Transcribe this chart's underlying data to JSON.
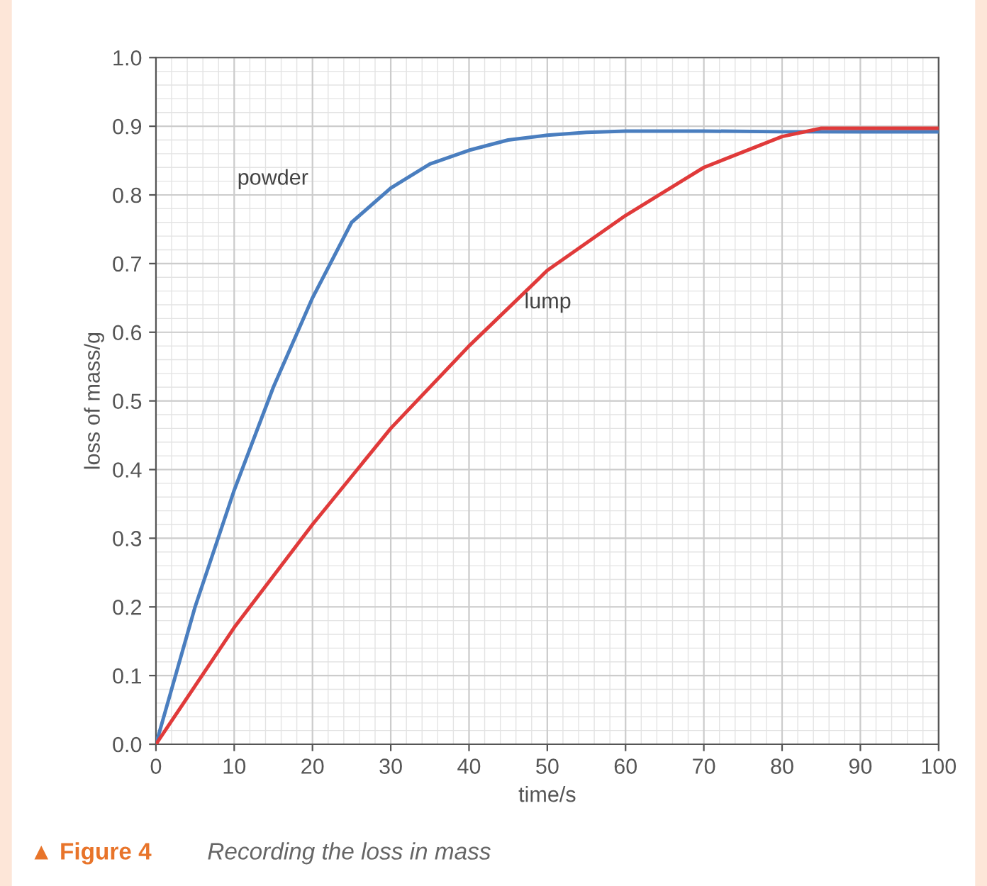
{
  "chart_data": {
    "type": "line",
    "title": "▲ Figure 4",
    "subtitle": "Recording the loss in mass",
    "xlabel": "time/s",
    "ylabel": "loss of mass/g",
    "xlim": [
      0,
      100
    ],
    "ylim": [
      0,
      1.0
    ],
    "xticks": [
      0,
      10,
      20,
      30,
      40,
      50,
      60,
      70,
      80,
      90,
      100
    ],
    "yticks": [
      {
        "value": 0,
        "label": "0.0"
      },
      0.1,
      0.2,
      0.3,
      0.4,
      0.5,
      0.6,
      0.7,
      0.8,
      0.9,
      {
        "value": 1,
        "label": "1.0"
      }
    ],
    "grid": true,
    "marker": "none",
    "line_style": "solid",
    "series": [
      {
        "name": "powder",
        "color": "#4a7ebf",
        "x": [
          0,
          5,
          10,
          15,
          20,
          25,
          30,
          35,
          40,
          45,
          50,
          55,
          60,
          70,
          80,
          90,
          100
        ],
        "values": [
          0,
          0.2,
          0.37,
          0.52,
          0.65,
          0.76,
          0.81,
          0.845,
          0.865,
          0.88,
          0.887,
          0.891,
          0.893,
          0.893,
          0.892,
          0.892,
          0.892
        ]
      },
      {
        "name": "lump",
        "color": "#e03a3a",
        "x": [
          0,
          10,
          20,
          30,
          40,
          50,
          60,
          70,
          80,
          85,
          90,
          100
        ],
        "values": [
          0,
          0.17,
          0.32,
          0.46,
          0.58,
          0.69,
          0.77,
          0.84,
          0.885,
          0.897,
          0.897,
          0.897
        ]
      }
    ]
  }
}
